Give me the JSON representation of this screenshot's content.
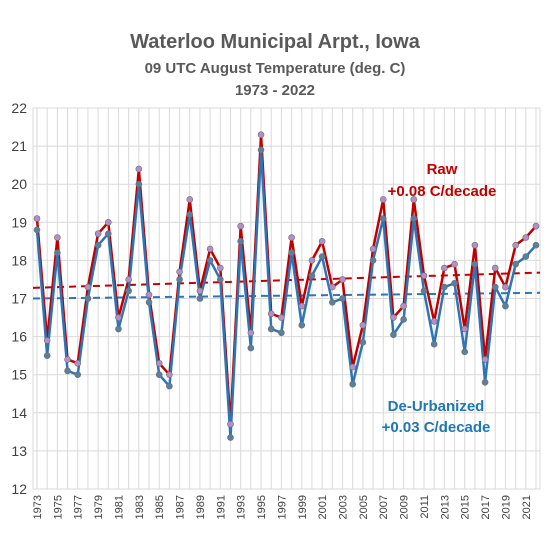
{
  "chart_data": {
    "type": "line",
    "title": "Waterloo Municipal Arpt., Iowa",
    "subtitle": "09 UTC August Temperature (deg. C)",
    "period": "1973 - 2022",
    "xlabel": "",
    "ylabel": "",
    "x": [
      1973,
      1974,
      1975,
      1976,
      1977,
      1978,
      1979,
      1980,
      1981,
      1982,
      1983,
      1984,
      1985,
      1986,
      1987,
      1988,
      1989,
      1990,
      1991,
      1992,
      1993,
      1994,
      1995,
      1996,
      1997,
      1998,
      1999,
      2000,
      2001,
      2002,
      2003,
      2004,
      2005,
      2006,
      2007,
      2008,
      2009,
      2010,
      2011,
      2012,
      2013,
      2014,
      2015,
      2016,
      2017,
      2018,
      2019,
      2020,
      2021,
      2022
    ],
    "xlim": [
      1973,
      2022
    ],
    "ylim": [
      12,
      22
    ],
    "yticks": [
      12,
      13,
      14,
      15,
      16,
      17,
      18,
      19,
      20,
      21,
      22
    ],
    "xtick_labels": [
      "1973",
      "1975",
      "1977",
      "1979",
      "1981",
      "1983",
      "1985",
      "1987",
      "1989",
      "1991",
      "1993",
      "1995",
      "1997",
      "1999",
      "2001",
      "2003",
      "2005",
      "2007",
      "2009",
      "2011",
      "2013",
      "2015",
      "2017",
      "2019",
      "2021"
    ],
    "grid": true,
    "legend": "none",
    "series": [
      {
        "name": "Raw",
        "color": "#c00000",
        "marker_color": "#b48ec8",
        "values": [
          19.1,
          15.9,
          18.6,
          15.4,
          15.3,
          17.3,
          18.7,
          19.0,
          16.5,
          17.5,
          20.4,
          17.1,
          15.3,
          15.0,
          17.7,
          19.6,
          17.2,
          18.3,
          17.8,
          13.7,
          18.9,
          16.1,
          21.3,
          16.6,
          16.5,
          18.6,
          16.8,
          18.0,
          18.5,
          17.3,
          17.5,
          15.2,
          16.3,
          18.3,
          19.6,
          16.5,
          16.8,
          19.6,
          17.6,
          16.4,
          17.8,
          17.9,
          16.2,
          18.4,
          15.4,
          17.8,
          17.3,
          18.4,
          18.6,
          18.9
        ]
      },
      {
        "name": "De-Urbanized",
        "color": "#2e75b6",
        "marker_color": "#5a7fa0",
        "values": [
          18.8,
          15.5,
          18.2,
          15.1,
          15.0,
          17.0,
          18.4,
          18.7,
          16.2,
          17.2,
          20.0,
          16.9,
          15.0,
          14.7,
          17.5,
          19.2,
          17.0,
          18.0,
          17.5,
          13.35,
          18.5,
          15.7,
          20.9,
          16.2,
          16.1,
          18.2,
          16.3,
          17.6,
          18.1,
          16.9,
          17.0,
          14.75,
          15.85,
          18.0,
          19.1,
          16.05,
          16.45,
          19.1,
          17.2,
          15.8,
          17.3,
          17.4,
          15.6,
          17.9,
          14.8,
          17.3,
          16.8,
          17.9,
          18.1,
          18.4
        ]
      }
    ],
    "trendlines": [
      {
        "series": "Raw",
        "start": 17.28,
        "end": 17.68,
        "color": "#c00000"
      },
      {
        "series": "De-Urbanized",
        "start": 17.0,
        "end": 17.15,
        "color": "#2e75b6"
      }
    ],
    "annotations": [
      {
        "series": "Raw",
        "lines": [
          "Raw",
          "+0.08 C/decade"
        ]
      },
      {
        "series": "De-Urbanized",
        "lines": [
          "De-Urbanized",
          "+0.03 C/decade"
        ]
      }
    ],
    "colors": {
      "grid": "#d9d9d9",
      "axis_text": "#404040",
      "title": "#595959",
      "raw_text": "#c00000",
      "deurb_text": "#1f78b4"
    }
  }
}
